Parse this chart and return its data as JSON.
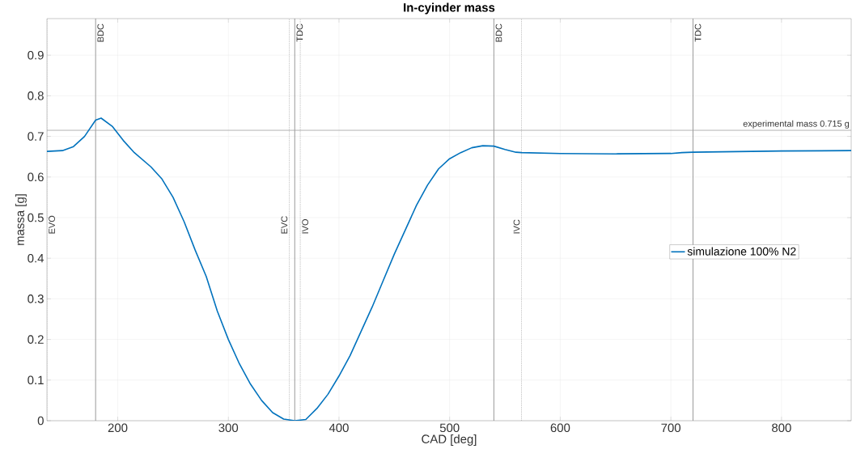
{
  "chart_data": {
    "type": "line",
    "title": "In-cyinder mass",
    "xlabel": "CAD [deg]",
    "ylabel": "massa [g]",
    "xlim": [
      136,
      863
    ],
    "ylim": [
      0,
      0.99
    ],
    "xticks": [
      200,
      300,
      400,
      500,
      600,
      700,
      800
    ],
    "yticks": [
      0,
      0.1,
      0.2,
      0.3,
      0.4,
      0.5,
      0.6,
      0.7,
      0.8,
      0.9
    ],
    "grid": true,
    "legend": "right",
    "series": [
      {
        "name": "simulazione 100% N2",
        "color": "#0072bd",
        "x": [
          136,
          150,
          160,
          170,
          180,
          185,
          195,
          205,
          215,
          230,
          240,
          250,
          260,
          270,
          280,
          290,
          300,
          310,
          320,
          330,
          340,
          350,
          360,
          370,
          380,
          390,
          400,
          410,
          420,
          430,
          440,
          450,
          460,
          470,
          480,
          490,
          500,
          510,
          520,
          530,
          540,
          550,
          560,
          565,
          600,
          650,
          700,
          710,
          720,
          800,
          863
        ],
        "values": [
          0.663,
          0.665,
          0.675,
          0.7,
          0.74,
          0.745,
          0.725,
          0.69,
          0.66,
          0.625,
          0.595,
          0.55,
          0.49,
          0.42,
          0.355,
          0.27,
          0.2,
          0.14,
          0.09,
          0.05,
          0.02,
          0.004,
          0,
          0.003,
          0.03,
          0.065,
          0.11,
          0.16,
          0.22,
          0.28,
          0.345,
          0.41,
          0.47,
          0.53,
          0.58,
          0.62,
          0.645,
          0.66,
          0.672,
          0.677,
          0.676,
          0.668,
          0.661,
          0.66,
          0.658,
          0.657,
          0.658,
          0.66,
          0.661,
          0.664,
          0.665
        ]
      }
    ],
    "ref_lines": [
      {
        "axis": "x",
        "value": 136,
        "label": "EVO",
        "color": "#a0a0a0",
        "line_style": "dotted"
      },
      {
        "axis": "x",
        "value": 180,
        "label": "BDC",
        "color": "#808080",
        "line_style": "solid"
      },
      {
        "axis": "x",
        "value": 355,
        "label": "EVC",
        "color": "#a0a0a0",
        "line_style": "dotted"
      },
      {
        "axis": "x",
        "value": 360,
        "label": "TDC",
        "color": "#808080",
        "line_style": "solid"
      },
      {
        "axis": "x",
        "value": 365,
        "label": "IVO",
        "color": "#a0a0a0",
        "line_style": "dotted"
      },
      {
        "axis": "x",
        "value": 540,
        "label": "BDC",
        "color": "#808080",
        "line_style": "solid"
      },
      {
        "axis": "x",
        "value": 565,
        "label": "IVC",
        "color": "#a0a0a0",
        "line_style": "dotted"
      },
      {
        "axis": "x",
        "value": 720,
        "label": "TDC",
        "color": "#808080",
        "line_style": "solid"
      },
      {
        "axis": "y",
        "value": 0.715,
        "label": "experimental mass 0.715 g",
        "color": "#a0a0a0",
        "line_style": "solid"
      }
    ]
  }
}
